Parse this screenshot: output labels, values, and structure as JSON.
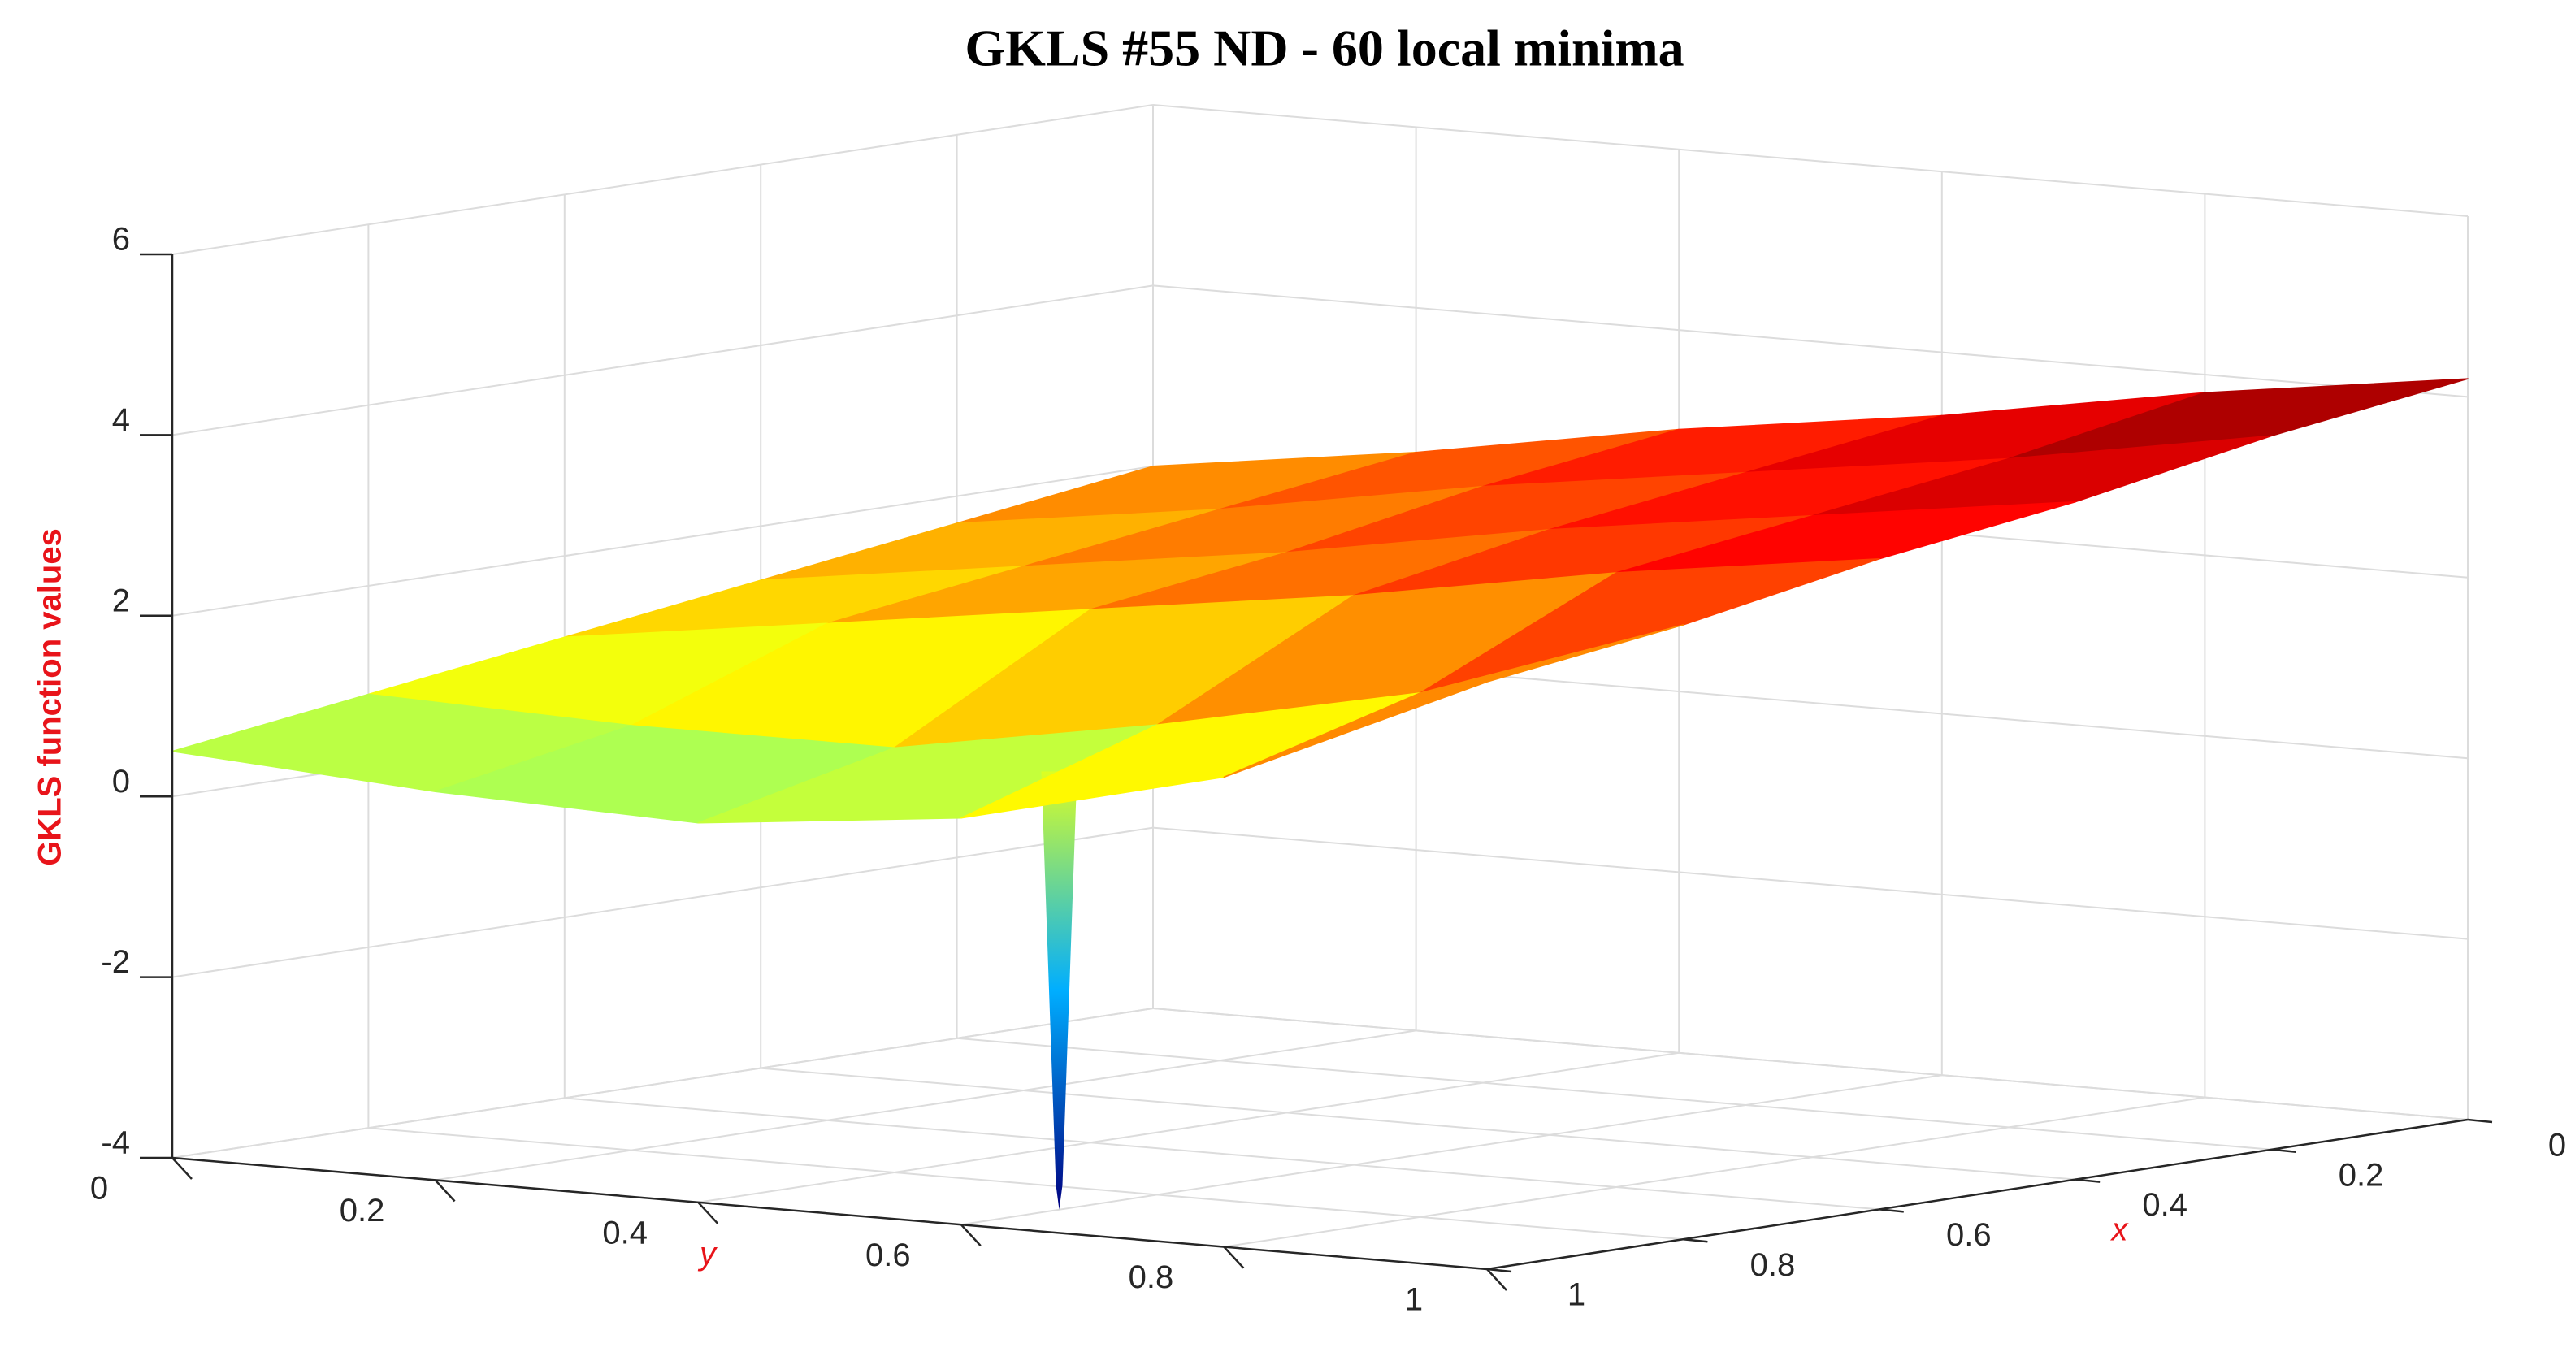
{
  "chart_data": {
    "type": "surface",
    "title": "GKLS #55 ND - 60 local minima",
    "xlabel": "x",
    "ylabel": "y",
    "zlabel": "GKLS function values",
    "x": [
      0,
      0.2,
      0.4,
      0.6,
      0.8,
      1
    ],
    "y": [
      0,
      0.2,
      0.4,
      0.6,
      0.8,
      1
    ],
    "z": [
      [
        2.0,
        2.4,
        2.9,
        3.3,
        3.8,
        4.2
      ],
      [
        1.7,
        2.1,
        2.6,
        3.0,
        3.4,
        3.9
      ],
      [
        1.4,
        1.8,
        2.2,
        2.7,
        3.1,
        3.5
      ],
      [
        1.1,
        1.5,
        1.9,
        2.3,
        2.8,
        3.2
      ],
      [
        0.8,
        0.7,
        0.7,
        1.2,
        1.8,
        2.8
      ],
      [
        0.5,
        0.3,
        0.2,
        0.5,
        1.2,
        2.5
      ]
    ],
    "minimum": {
      "x": 0.9,
      "y": 0.6,
      "z": -4
    },
    "xlim": [
      0,
      1
    ],
    "ylim": [
      0,
      1
    ],
    "zlim": [
      -4,
      6
    ],
    "xticks": [
      0,
      0.2,
      0.4,
      0.6,
      0.8,
      1
    ],
    "yticks": [
      0,
      0.2,
      0.4,
      0.6,
      0.8,
      1
    ],
    "zticks": [
      -4,
      -2,
      0,
      2,
      4,
      6
    ],
    "grid": true,
    "colormap": "jet"
  }
}
